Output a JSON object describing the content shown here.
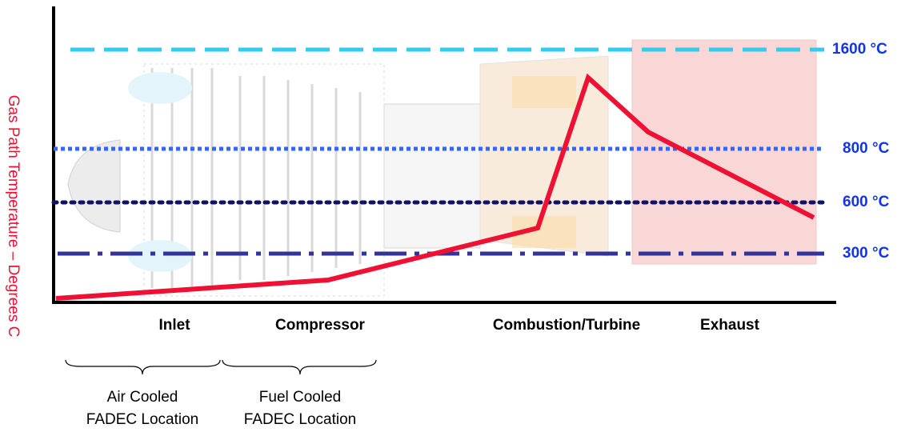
{
  "y_axis_label": "Gas Path Temperature – Degrees C",
  "reference_lines": [
    {
      "label": "1600 °C"
    },
    {
      "label": "800 °C"
    },
    {
      "label": "600 °C"
    },
    {
      "label": "300 °C"
    }
  ],
  "zones": [
    "Inlet",
    "Compressor",
    "Combustion/Turbine",
    "Exhaust"
  ],
  "cooling_locations": [
    {
      "line1": "Air Cooled",
      "line2": "FADEC Location"
    },
    {
      "line1": "Fuel Cooled",
      "line2": "FADEC Location"
    }
  ]
}
